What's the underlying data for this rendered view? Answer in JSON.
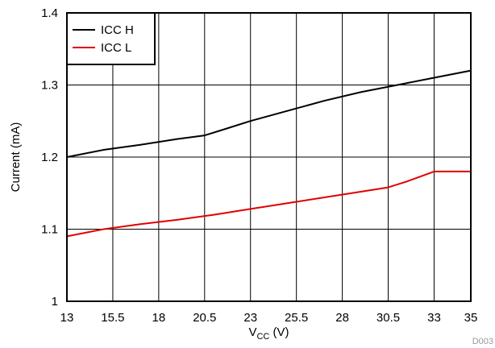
{
  "chart_data": {
    "type": "line",
    "xlabel": {
      "main": "V",
      "sub": "CC",
      "unit": " (V)"
    },
    "ylabel": "Current (mA)",
    "xlim": [
      13,
      35
    ],
    "ylim": [
      1,
      1.4
    ],
    "x_ticks": [
      13,
      15.5,
      18,
      20.5,
      23,
      25.5,
      28,
      30.5,
      33,
      35
    ],
    "x_tick_labels": [
      "13",
      "15.5",
      "18",
      "20.5",
      "23",
      "25.5",
      "28",
      "30.5",
      "33",
      "35"
    ],
    "y_ticks": [
      1,
      1.1,
      1.2,
      1.3,
      1.4
    ],
    "y_tick_labels": [
      "1",
      "1.1",
      "1.2",
      "1.3",
      "1.4"
    ],
    "grid": true,
    "legend_position": "top-left",
    "figure_id": "D003",
    "series": [
      {
        "name": "ICC H",
        "color": "#000000",
        "x": [
          13,
          15,
          17,
          19,
          20.5,
          21.5,
          23,
          25,
          27,
          29,
          31,
          33,
          35
        ],
        "y": [
          1.2,
          1.21,
          1.217,
          1.225,
          1.23,
          1.238,
          1.25,
          1.264,
          1.278,
          1.29,
          1.3,
          1.31,
          1.32
        ]
      },
      {
        "name": "ICC L",
        "color": "#e00000",
        "x": [
          13,
          15,
          17,
          19,
          21,
          23,
          25,
          27,
          29,
          30.5,
          31.5,
          33,
          35
        ],
        "y": [
          1.09,
          1.1,
          1.107,
          1.113,
          1.12,
          1.128,
          1.136,
          1.144,
          1.152,
          1.158,
          1.166,
          1.18,
          1.18
        ]
      }
    ]
  }
}
